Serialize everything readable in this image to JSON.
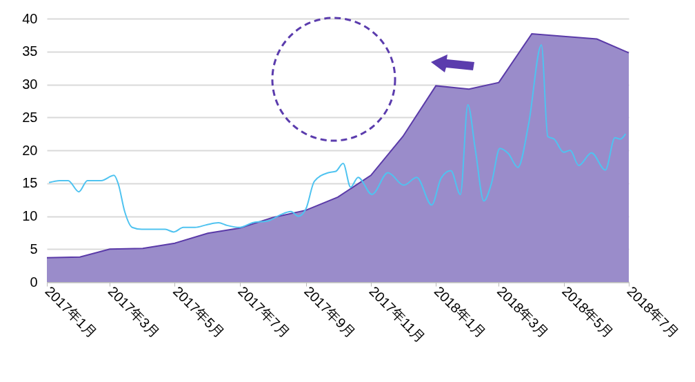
{
  "chart_data": {
    "type": "area",
    "xlim": [
      "2017-01-01",
      "2018-07-01"
    ],
    "xticks": [
      {
        "value": "2017-01-01",
        "label": "2017年1月"
      },
      {
        "value": "2017-03-01",
        "label": "2017年3月"
      },
      {
        "value": "2017-05-01",
        "label": "2017年5月"
      },
      {
        "value": "2017-07-01",
        "label": "2017年7月"
      },
      {
        "value": "2017-09-01",
        "label": "2017年9月"
      },
      {
        "value": "2017-11-01",
        "label": "2017年11月"
      },
      {
        "value": "2018-01-01",
        "label": "2018年1月"
      },
      {
        "value": "2018-03-01",
        "label": "2018年3月"
      },
      {
        "value": "2018-05-01",
        "label": "2018年5月"
      },
      {
        "value": "2018-07-01",
        "label": "2018年7月"
      }
    ],
    "ylim": [
      0,
      40
    ],
    "yticks": [
      0,
      5,
      10,
      15,
      20,
      25,
      30,
      35,
      40
    ],
    "grid": "y",
    "series": [
      {
        "color": "#9a8cca",
        "x": [
          "2017-01-01",
          "2017-02-01",
          "2017-03-01",
          "2017-04-01",
          "2017-05-01",
          "2017-06-01",
          "2017-07-01",
          "2017-08-01",
          "2017-09-01",
          "2017-10-01",
          "2017-11-01",
          "2017-12-01",
          "2018-01-01",
          "2018-02-01",
          "2018-03-01",
          "2018-04-01",
          "2018-05-01",
          "2018-06-01",
          "2018-07-01"
        ],
        "values": [
          3.7,
          3.8,
          5.0,
          5.1,
          5.9,
          7.4,
          8.2,
          9.8,
          10.9,
          12.9,
          16.2,
          22.1,
          29.8,
          29.3,
          30.3,
          37.7,
          37.3,
          36.9,
          34.8
        ]
      },
      {
        "type": "line",
        "color": "#4fc3f0",
        "x": [
          "2017-01-03",
          "2017-01-13",
          "2017-01-21",
          "2017-01-31",
          "2017-02-08",
          "2017-02-21",
          "2017-03-05",
          "2017-03-09",
          "2017-03-15",
          "2017-03-22",
          "2017-03-31",
          "2017-04-22",
          "2017-04-30",
          "2017-05-09",
          "2017-05-20",
          "2017-05-31",
          "2017-06-11",
          "2017-06-19",
          "2017-07-01",
          "2017-07-13",
          "2017-07-28",
          "2017-08-08",
          "2017-08-18",
          "2017-08-25",
          "2017-09-01",
          "2017-09-09",
          "2017-09-22",
          "2017-09-29",
          "2017-10-06",
          "2017-10-13",
          "2017-10-20",
          "2017-11-02",
          "2017-11-17",
          "2017-12-02",
          "2017-12-14",
          "2017-12-28",
          "2018-01-06",
          "2018-01-15",
          "2018-01-24",
          "2018-01-31",
          "2018-02-07",
          "2018-02-15",
          "2018-02-22",
          "2018-03-02",
          "2018-03-10",
          "2018-03-19",
          "2018-03-29",
          "2018-04-10",
          "2018-04-16",
          "2018-04-22",
          "2018-05-01",
          "2018-05-07",
          "2018-05-15",
          "2018-05-27",
          "2018-06-09",
          "2018-06-18",
          "2018-06-23",
          "2018-06-28"
        ],
        "values": [
          15.1,
          15.4,
          15.4,
          13.7,
          15.4,
          15.4,
          16.2,
          14.9,
          10.7,
          8.3,
          8.0,
          8.0,
          7.6,
          8.3,
          8.3,
          8.7,
          9.0,
          8.6,
          8.3,
          9.0,
          9.3,
          10.2,
          10.7,
          10.0,
          11.1,
          15.3,
          16.6,
          16.8,
          18.0,
          14.4,
          15.9,
          13.3,
          16.6,
          14.7,
          15.9,
          11.7,
          15.8,
          16.9,
          13.3,
          26.9,
          20.1,
          12.3,
          14.9,
          20.3,
          19.5,
          17.4,
          24.0,
          36.0,
          22.1,
          21.7,
          19.7,
          20.0,
          17.7,
          19.6,
          17.0,
          21.9,
          21.7,
          22.5
        ]
      }
    ]
  }
}
